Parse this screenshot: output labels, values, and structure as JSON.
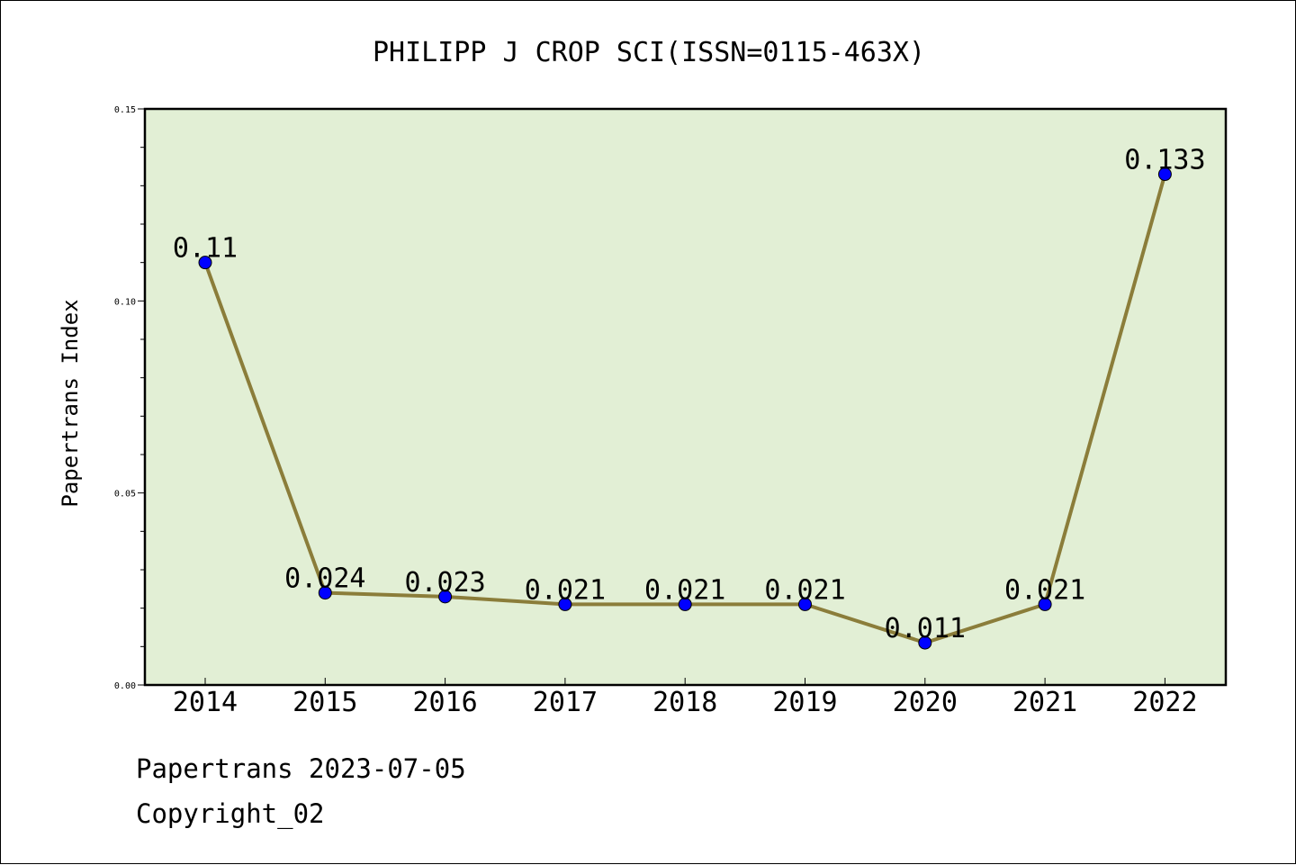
{
  "chart_data": {
    "type": "line",
    "title": "PHILIPP J CROP SCI(ISSN=0115-463X)",
    "xlabel": "",
    "ylabel": "Papertrans Index",
    "categories": [
      "2014",
      "2015",
      "2016",
      "2017",
      "2018",
      "2019",
      "2020",
      "2021",
      "2022"
    ],
    "series": [
      {
        "values": [
          0.11,
          0.024,
          0.023,
          0.021,
          0.021,
          0.021,
          0.011,
          0.021,
          0.133
        ],
        "labels": [
          "0.11",
          "0.024",
          "0.023",
          "0.021",
          "0.021",
          "0.021",
          "0.011",
          "0.021",
          "0.133"
        ]
      }
    ],
    "ylim": [
      0,
      0.15
    ],
    "yticks": [
      "0.00",
      "0.05",
      "0.10",
      "0.15"
    ],
    "grid": false,
    "legend": "none",
    "colors": {
      "plot_background": "#e2efd5",
      "line": "#8b7d3a",
      "marker": "#0000ff"
    }
  },
  "footer": {
    "source": "Papertrans 2023-07-05",
    "copyright": "Copyright_02"
  }
}
